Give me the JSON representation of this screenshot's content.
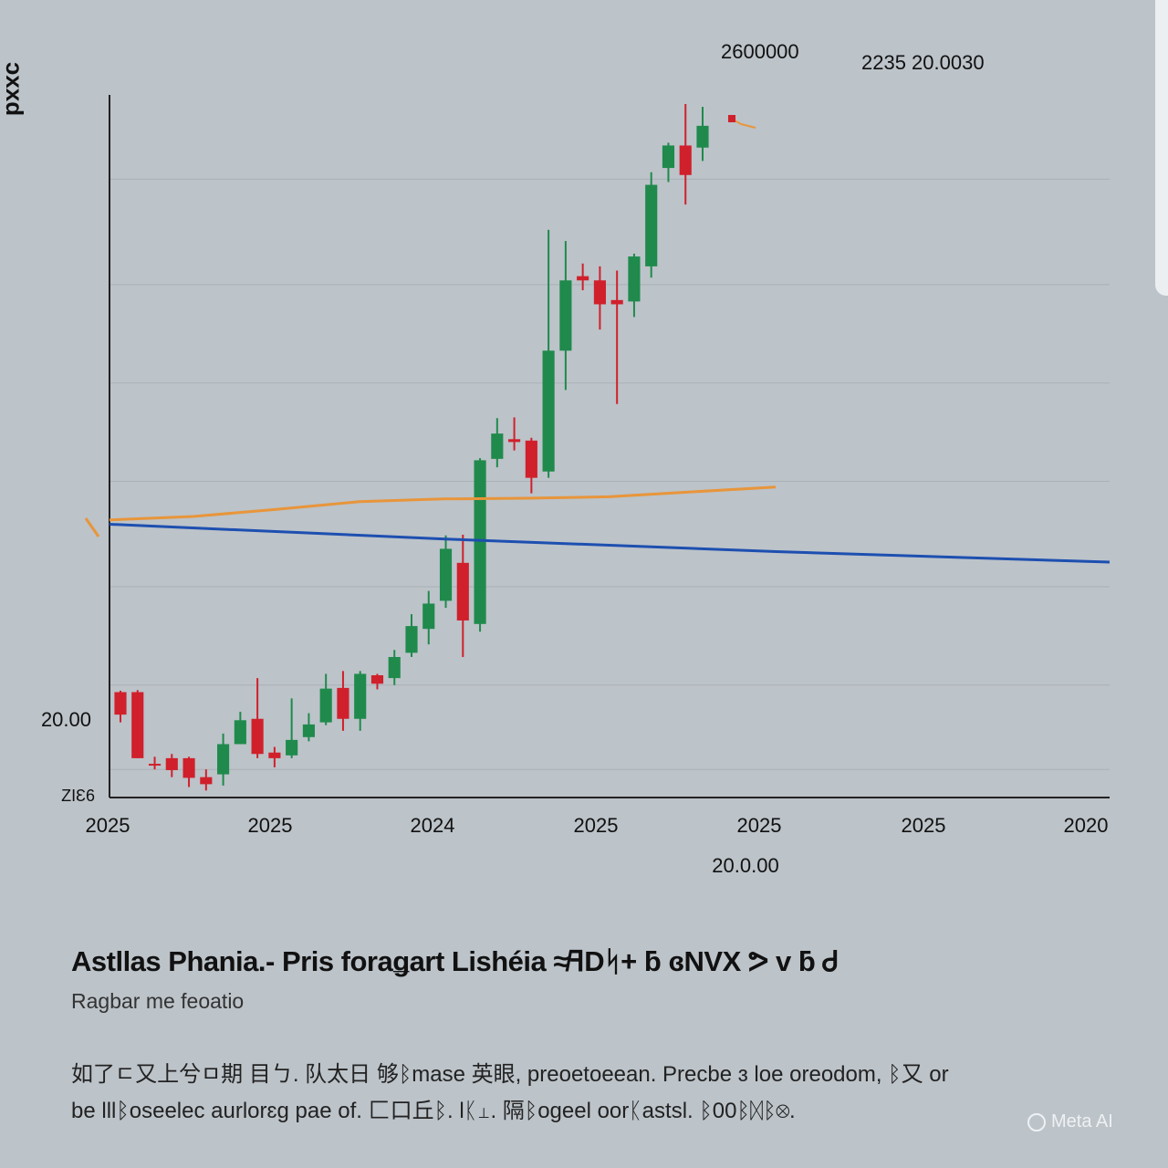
{
  "side_label": "ɔxxd",
  "top_values": [
    "2600000",
    "2235 20.0030"
  ],
  "chart_data": {
    "type": "candlestick",
    "title": "",
    "xlabel": "20.0.00",
    "ylabel": "",
    "x_tick_labels": [
      "2025",
      "2025",
      "2024",
      "2025",
      "2025",
      "2025",
      "2020"
    ],
    "y_tick_labels": [
      "20.00",
      "ZIƐ6"
    ],
    "ylim": [
      0,
      100
    ],
    "grid": true,
    "colors": {
      "up": "#1f8a4c",
      "down": "#d0202b",
      "orange_line": "#e8953a",
      "blue_line": "#1d4fb0"
    },
    "candles": [
      {
        "open": 15.0,
        "close": 11.8,
        "high": 15.2,
        "low": 10.7
      },
      {
        "open": 15.0,
        "close": 5.6,
        "high": 15.3,
        "low": 5.6
      },
      {
        "open": 4.8,
        "close": 4.6,
        "high": 5.8,
        "low": 4.0
      },
      {
        "open": 5.6,
        "close": 3.9,
        "high": 6.2,
        "low": 2.9
      },
      {
        "open": 5.6,
        "close": 2.8,
        "high": 5.8,
        "low": 1.5
      },
      {
        "open": 2.9,
        "close": 1.9,
        "high": 4.0,
        "low": 1.0
      },
      {
        "open": 3.3,
        "close": 7.6,
        "high": 9.1,
        "low": 1.7
      },
      {
        "open": 7.6,
        "close": 11.0,
        "high": 12.2,
        "low": 7.6
      },
      {
        "open": 11.2,
        "close": 6.2,
        "high": 17.0,
        "low": 5.6
      },
      {
        "open": 6.4,
        "close": 5.6,
        "high": 7.2,
        "low": 4.3
      },
      {
        "open": 6.0,
        "close": 8.2,
        "high": 14.1,
        "low": 5.6
      },
      {
        "open": 8.6,
        "close": 10.4,
        "high": 12.0,
        "low": 8.0
      },
      {
        "open": 10.7,
        "close": 15.5,
        "high": 17.6,
        "low": 10.3
      },
      {
        "open": 15.6,
        "close": 11.2,
        "high": 18.0,
        "low": 9.5
      },
      {
        "open": 11.2,
        "close": 17.6,
        "high": 18.0,
        "low": 9.5
      },
      {
        "open": 17.4,
        "close": 16.2,
        "high": 17.6,
        "low": 15.4
      },
      {
        "open": 17.0,
        "close": 20.0,
        "high": 21.0,
        "low": 16.0
      },
      {
        "open": 20.6,
        "close": 24.4,
        "high": 26.1,
        "low": 20.0
      },
      {
        "open": 24.0,
        "close": 27.6,
        "high": 29.4,
        "low": 21.8
      },
      {
        "open": 28.0,
        "close": 35.4,
        "high": 37.3,
        "low": 27.0
      },
      {
        "open": 33.4,
        "close": 25.2,
        "high": 37.4,
        "low": 20.0
      },
      {
        "open": 24.7,
        "close": 48.0,
        "high": 48.3,
        "low": 23.6
      },
      {
        "open": 48.2,
        "close": 51.8,
        "high": 54.0,
        "low": 47.0
      },
      {
        "open": 51.0,
        "close": 50.6,
        "high": 54.1,
        "low": 49.4
      },
      {
        "open": 50.8,
        "close": 45.5,
        "high": 51.2,
        "low": 43.3
      },
      {
        "open": 46.4,
        "close": 63.6,
        "high": 80.8,
        "low": 45.5
      },
      {
        "open": 63.6,
        "close": 73.6,
        "high": 79.2,
        "low": 58.0
      },
      {
        "open": 74.2,
        "close": 73.6,
        "high": 76.0,
        "low": 72.2
      },
      {
        "open": 73.6,
        "close": 70.2,
        "high": 75.6,
        "low": 66.6
      },
      {
        "open": 70.8,
        "close": 70.2,
        "high": 75.0,
        "low": 56.0
      },
      {
        "open": 70.6,
        "close": 77.0,
        "high": 77.4,
        "low": 68.4
      },
      {
        "open": 75.6,
        "close": 87.2,
        "high": 89.0,
        "low": 74.0
      },
      {
        "open": 89.6,
        "close": 92.8,
        "high": 93.2,
        "low": 87.6
      },
      {
        "open": 92.8,
        "close": 88.6,
        "high": 98.7,
        "low": 84.4
      },
      {
        "open": 92.5,
        "close": 95.6,
        "high": 98.3,
        "low": 90.6
      }
    ],
    "orange_line": [
      [
        0,
        39.5
      ],
      [
        0.25,
        40.0
      ],
      [
        0.5,
        41.0
      ],
      [
        0.75,
        42.1
      ],
      [
        1,
        42.5
      ],
      [
        1.25,
        42.6
      ],
      [
        1.5,
        42.8
      ],
      [
        1.75,
        43.5
      ],
      [
        2.0,
        44.2
      ]
    ],
    "blue_line": [
      [
        0,
        38.9
      ],
      [
        1,
        36.8
      ],
      [
        2,
        35.0
      ],
      [
        3,
        33.5
      ]
    ]
  },
  "title": "Astllas Phania.- Pris foraǥart Lishéia ≉ꟻDᛋ+ ƃ ɞNVX ᕗ v ƃ Ꮷ",
  "subtitle": "Ragbar me feoatio",
  "description_lines": [
    "如了ㄷ又上兮ㅁ期  目ㄅ.  队太日  够ᛒmase 英眼,  preoetoeean.  Precbe ɜ loe oreodom,  ᛒ又 or",
    "be lllᛒoseelec aurlorɛg pae ᴏf.  匚⼝丘ᛒ.  lᛕ⊥.  隔ᛒogeel oorᛕastsl.  ᛒ00ᛒᛞᛒ⨂."
  ],
  "watermark": "Meta AI"
}
